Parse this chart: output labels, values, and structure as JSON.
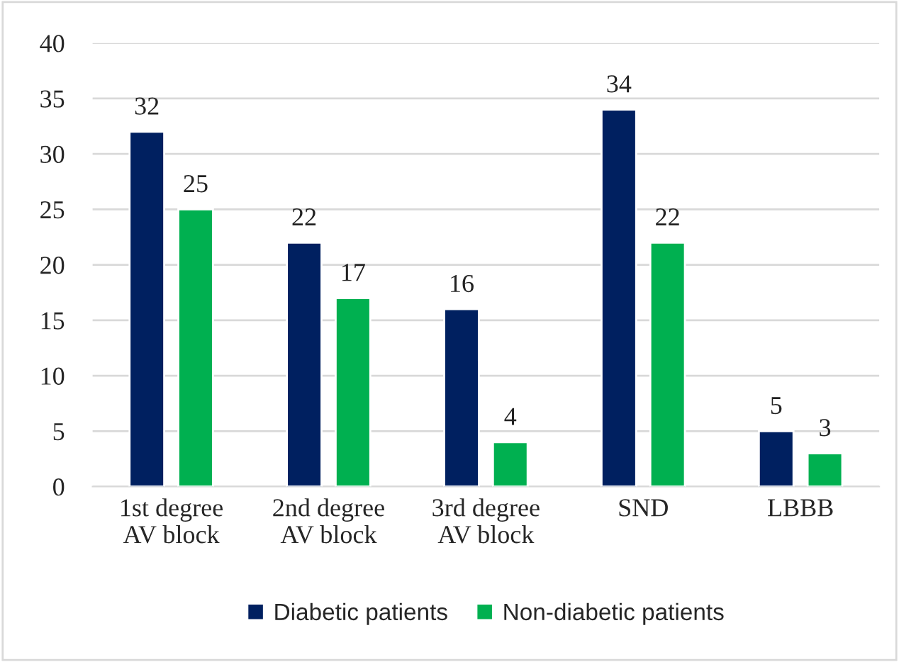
{
  "chart_data": {
    "type": "bar",
    "categories": [
      "1st degree\nAV block",
      "2nd degree\nAV block",
      "3rd degree\nAV block",
      "SND",
      "LBBB"
    ],
    "series": [
      {
        "name": "Diabetic patients",
        "color": "#002060",
        "values": [
          32,
          22,
          16,
          34,
          5
        ]
      },
      {
        "name": "Non-diabetic patients",
        "color": "#00b050",
        "values": [
          25,
          17,
          4,
          22,
          3
        ]
      }
    ],
    "ylim": [
      0,
      40
    ],
    "yticks": [
      0,
      5,
      10,
      15,
      20,
      25,
      30,
      35,
      40
    ],
    "grid": "y",
    "legend": "bottom",
    "data_labels": true
  }
}
